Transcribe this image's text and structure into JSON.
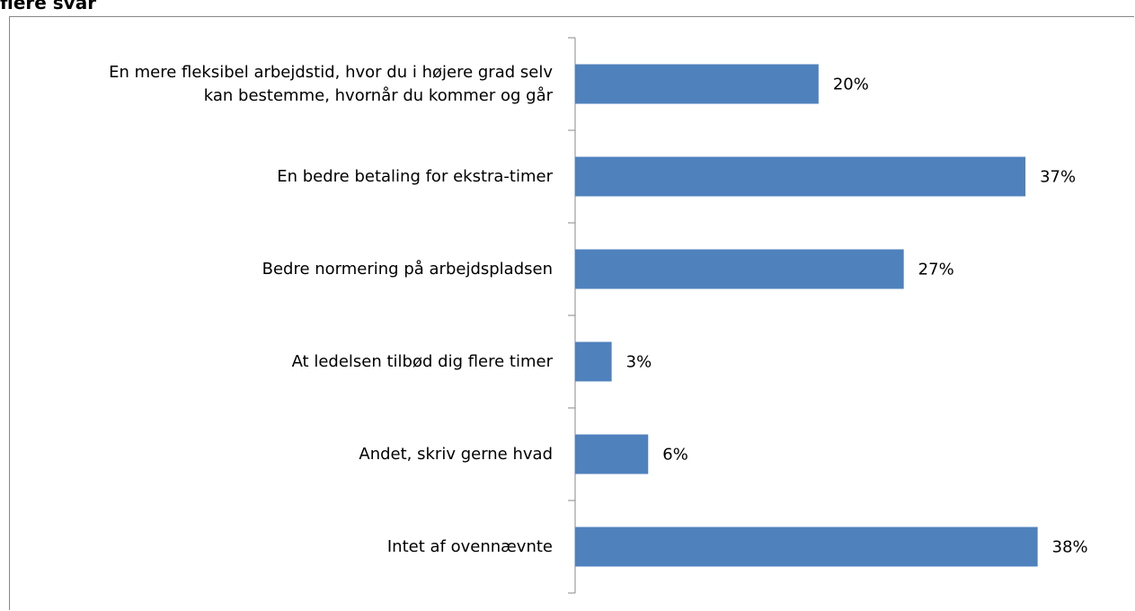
{
  "chart_data": {
    "type": "bar",
    "orientation": "horizontal",
    "title": "flere svar",
    "categories": [
      "En mere fleksibel arbejdstid, hvor du i højere grad selv\nkan bestemme, hvornår du kommer og går",
      "En bedre betaling for ekstra-timer",
      "Bedre normering på arbejdspladsen",
      "At ledelsen tilbød dig flere timer",
      "Andet, skriv gerne hvad",
      "Intet af ovennævnte"
    ],
    "values": [
      20,
      37,
      27,
      3,
      6,
      38
    ],
    "value_labels": [
      "20%",
      "37%",
      "27%",
      "3%",
      "6%",
      "38%"
    ],
    "color": "#4f81bd",
    "xlim": [
      0,
      46
    ]
  }
}
